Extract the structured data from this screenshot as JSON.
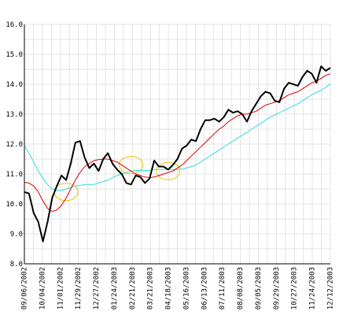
{
  "chart_data": {
    "type": "line",
    "title": "",
    "xlabel": "",
    "ylabel": "",
    "ylim": [
      8.0,
      16.0
    ],
    "yticks": [
      "8.0",
      "9.0",
      "10.0",
      "11.0",
      "12.0",
      "13.0",
      "14.0",
      "15.0",
      "16.0"
    ],
    "ytick_values": [
      8,
      9,
      10,
      11,
      12,
      13,
      14,
      15,
      16
    ],
    "xticks": [
      "09/06/2002",
      "10/04/2002",
      "11/01/2002",
      "11/29/2002",
      "12/27/2002",
      "01/24/2003",
      "02/21/2003",
      "03/21/2003",
      "04/18/2003",
      "05/16/2003",
      "06/13/2003",
      "07/11/2003",
      "08/08/2003",
      "09/05/2003",
      "09/29/2003",
      "10/27/2003",
      "11/24/2003",
      "12/12/2003"
    ],
    "grid": true,
    "legend": "none",
    "x": [
      "09/06/2002",
      "09/13/2002",
      "09/20/2002",
      "09/27/2002",
      "10/04/2002",
      "10/11/2002",
      "10/18/2002",
      "10/25/2002",
      "11/01/2002",
      "11/08/2002",
      "11/15/2002",
      "11/22/2002",
      "11/29/2002",
      "12/06/2002",
      "12/13/2002",
      "12/20/2002",
      "12/27/2002",
      "01/03/2003",
      "01/10/2003",
      "01/17/2003",
      "01/24/2003",
      "01/31/2003",
      "02/07/2003",
      "02/14/2003",
      "02/21/2003",
      "02/28/2003",
      "03/07/2003",
      "03/14/2003",
      "03/21/2003",
      "03/28/2003",
      "04/04/2003",
      "04/11/2003",
      "04/18/2003",
      "04/25/2003",
      "05/02/2003",
      "05/09/2003",
      "05/16/2003",
      "05/23/2003",
      "05/30/2003",
      "06/06/2003",
      "06/13/2003",
      "06/20/2003",
      "06/27/2003",
      "07/04/2003",
      "07/11/2003",
      "07/18/2003",
      "07/25/2003",
      "08/01/2003",
      "08/08/2003",
      "08/15/2003",
      "08/22/2003",
      "08/29/2003",
      "09/05/2003",
      "09/12/2003",
      "09/19/2003",
      "09/26/2003",
      "10/03/2003",
      "10/10/2003",
      "10/17/2003",
      "10/24/2003",
      "10/31/2003",
      "11/07/2003",
      "11/14/2003",
      "11/21/2003",
      "11/28/2003",
      "12/05/2003",
      "12/12/2003"
    ],
    "series": [
      {
        "color": "#000000",
        "width": 2,
        "values": [
          10.4,
          10.35,
          9.7,
          9.4,
          8.75,
          9.4,
          10.2,
          10.6,
          10.95,
          10.8,
          11.35,
          12.05,
          12.1,
          11.55,
          11.2,
          11.35,
          11.1,
          11.5,
          11.7,
          11.35,
          11.15,
          11.0,
          10.7,
          10.65,
          10.95,
          10.9,
          10.7,
          10.85,
          11.45,
          11.25,
          11.25,
          11.15,
          11.3,
          11.5,
          11.85,
          11.95,
          12.15,
          12.1,
          12.5,
          12.8,
          12.8,
          12.85,
          12.75,
          12.9,
          13.15,
          13.05,
          13.1,
          13.0,
          12.75,
          13.1,
          13.35,
          13.6,
          13.75,
          13.7,
          13.45,
          13.4,
          13.85,
          14.05,
          14.0,
          13.95,
          14.25,
          14.45,
          14.35,
          14.05,
          14.6,
          14.45,
          14.55
        ]
      },
      {
        "color": "#dd0000",
        "width": 1,
        "values": [
          10.72,
          10.7,
          10.6,
          10.4,
          10.1,
          9.85,
          9.75,
          9.8,
          9.95,
          10.2,
          10.5,
          10.8,
          11.05,
          11.25,
          11.35,
          11.45,
          11.48,
          11.5,
          11.5,
          11.45,
          11.4,
          11.3,
          11.2,
          11.1,
          11.0,
          10.95,
          10.9,
          10.88,
          10.9,
          10.95,
          11.0,
          11.05,
          11.1,
          11.2,
          11.3,
          11.45,
          11.6,
          11.75,
          11.9,
          12.05,
          12.2,
          12.35,
          12.5,
          12.6,
          12.75,
          12.85,
          12.95,
          13.0,
          13.0,
          13.05,
          13.1,
          13.2,
          13.3,
          13.35,
          13.4,
          13.45,
          13.55,
          13.65,
          13.7,
          13.75,
          13.85,
          13.95,
          14.05,
          14.1,
          14.2,
          14.3,
          14.35
        ]
      },
      {
        "color": "#33dddd",
        "width": 1,
        "values": [
          11.95,
          11.7,
          11.4,
          11.1,
          10.85,
          10.65,
          10.5,
          10.45,
          10.45,
          10.5,
          10.55,
          10.6,
          10.62,
          10.65,
          10.65,
          10.65,
          10.7,
          10.75,
          10.8,
          10.88,
          10.95,
          11.0,
          11.05,
          11.1,
          11.12,
          11.12,
          11.12,
          11.12,
          11.15,
          11.15,
          11.15,
          11.15,
          11.15,
          11.15,
          11.17,
          11.2,
          11.25,
          11.3,
          11.4,
          11.5,
          11.6,
          11.7,
          11.8,
          11.9,
          12.0,
          12.1,
          12.2,
          12.3,
          12.4,
          12.5,
          12.6,
          12.7,
          12.8,
          12.9,
          12.98,
          13.05,
          13.12,
          13.2,
          13.28,
          13.35,
          13.45,
          13.55,
          13.65,
          13.72,
          13.8,
          13.9,
          14.02
        ]
      }
    ],
    "annotations": [
      {
        "shape": "ellipse",
        "color": "#f0c000",
        "x": "11/08/2002",
        "y": 10.4
      },
      {
        "shape": "ellipse",
        "color": "#f0c000",
        "x": "02/14/2003",
        "y": 11.3
      },
      {
        "shape": "ellipse",
        "color": "#f0c000",
        "x": "04/11/2003",
        "y": 11.1
      }
    ]
  }
}
